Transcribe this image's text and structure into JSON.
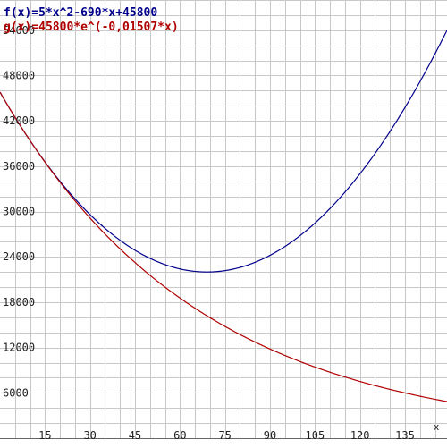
{
  "chart_data": {
    "type": "line",
    "x_axis": {
      "min": 0,
      "max": 149,
      "label": "x",
      "ticks": [
        15,
        30,
        45,
        60,
        75,
        90,
        105,
        120,
        135
      ]
    },
    "y_axis": {
      "min": 0,
      "max": 58000,
      "ticks": [
        6000,
        12000,
        18000,
        24000,
        30000,
        36000,
        42000,
        48000,
        54000
      ]
    },
    "grid": true,
    "grid_color": "#c8c8c8",
    "legend_position": "top-left",
    "series": [
      {
        "name": "f(x)=5*x^2-690*x+45800",
        "color": "#00008b",
        "formula": {
          "kind": "quadratic",
          "a": 5,
          "b": -690,
          "c": 45800
        }
      },
      {
        "name": "g(x)=45800*e^(-0,01507*x)",
        "color": "#b00000",
        "formula": {
          "kind": "exponential",
          "a": 45800,
          "k": -0.01507
        }
      }
    ]
  }
}
